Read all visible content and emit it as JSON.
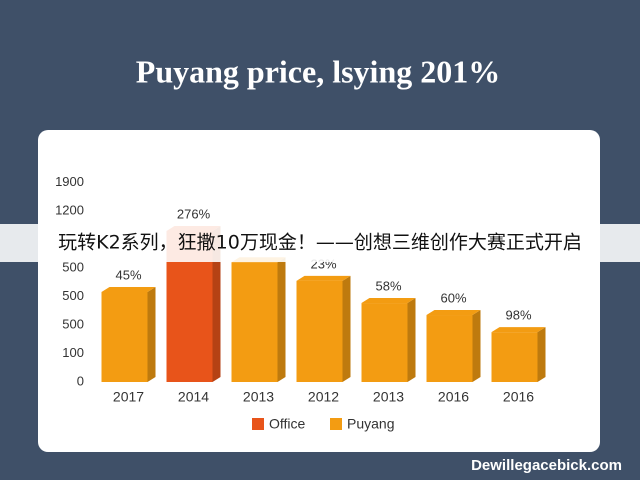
{
  "chart_data": {
    "type": "bar",
    "title": "Puyang price, lsying 201%",
    "categories": [
      "2017",
      "2014",
      "2013",
      "2012",
      "2013",
      "2016",
      "2016"
    ],
    "series": [
      {
        "name": "Office",
        "color": "#e8541a",
        "values": [
          null,
          5.3,
          null,
          null,
          null,
          null,
          null
        ]
      },
      {
        "name": "Puyang",
        "color": "#f39c12",
        "values": [
          3.16,
          null,
          4.2,
          3.55,
          2.77,
          2.35,
          1.75
        ]
      }
    ],
    "labels": [
      "45%",
      "276%",
      null,
      "23%",
      "58%",
      "60%",
      "98%"
    ],
    "ylim": [
      0,
      7.2
    ],
    "yticks": [
      0,
      {
        "value": 1,
        "label": "100"
      },
      {
        "value": 2,
        "label": "500"
      },
      {
        "value": 3,
        "label": "500"
      },
      {
        "value": 4,
        "label": "500"
      },
      {
        "value": 6,
        "label": "1200"
      },
      {
        "value": 7,
        "label": "1900"
      }
    ],
    "grid": false,
    "legend": "bottom"
  },
  "banner": "玩转K2系列，狂撒10万现金！——创想三维创作大赛正式开启",
  "watermark": "Dewillegacebick.com"
}
